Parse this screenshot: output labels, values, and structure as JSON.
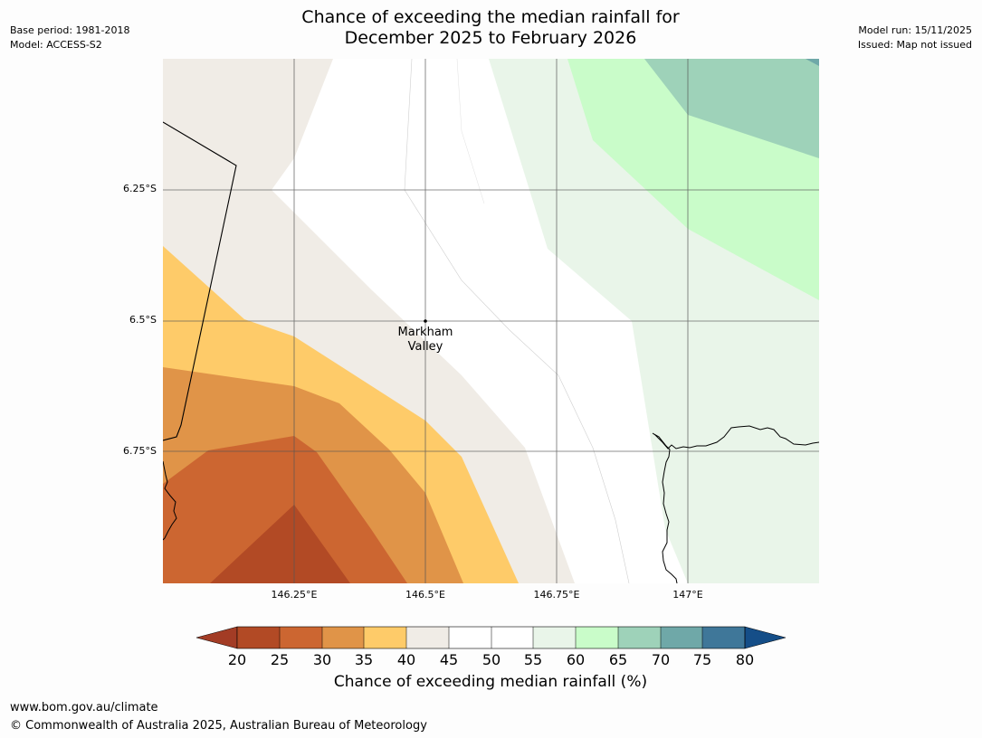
{
  "title_line1": "Chance of exceeding the median rainfall for",
  "title_line2": "December 2025 to February 2026",
  "meta_left": {
    "base_period": "Base period: 1981-2018",
    "model": "Model: ACCESS-S2"
  },
  "meta_right": {
    "model_run": "Model run: 15/11/2025",
    "issued": "Issued: Map not issued"
  },
  "lat_labels": [
    "6.25°S",
    "6.5°S",
    "6.75°S"
  ],
  "lon_labels": [
    "146.25°E",
    "146.5°E",
    "146.75°E",
    "147°E"
  ],
  "place": {
    "name_line1": "Markham",
    "name_line2": "Valley"
  },
  "colorbar": {
    "ticks": [
      "20",
      "25",
      "30",
      "35",
      "40",
      "45",
      "50",
      "55",
      "60",
      "65",
      "70",
      "75",
      "80"
    ],
    "label": "Chance of exceeding median rainfall (%)",
    "colors": [
      "#a33c25",
      "#b24a25",
      "#cc6631",
      "#e09448",
      "#fecb69",
      "#f0ece6",
      "#ffffff",
      "#ffffff",
      "#e9f5e9",
      "#c9fcc9",
      "#9ed2b9",
      "#6fa8a8",
      "#3f7799",
      "#154e88"
    ]
  },
  "footer": {
    "url": "www.bom.gov.au/climate",
    "copyright": "© Commonwealth of Australia 2025, Australian Bureau of Meteorology"
  }
}
